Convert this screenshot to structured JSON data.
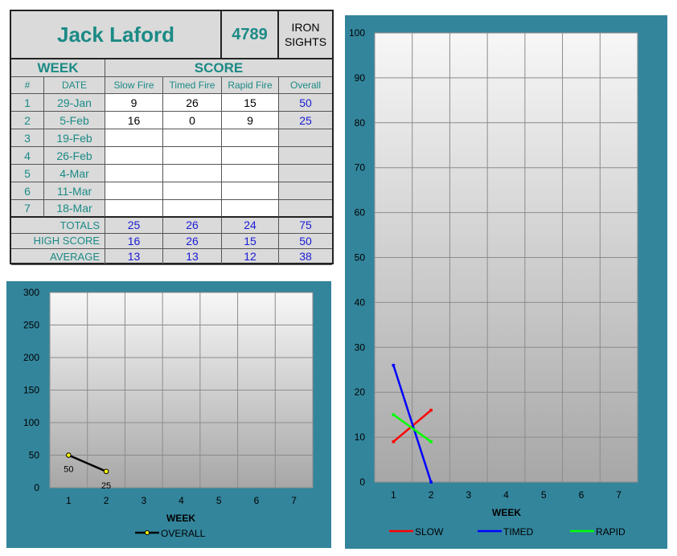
{
  "scorecard": {
    "shooter_name": "Jack Laford",
    "shooter_id": "4789",
    "sight_type": "IRON\nSIGHTS",
    "group_headers": {
      "week": "WEEK",
      "score": "SCORE"
    },
    "columns": [
      "#",
      "DATE",
      "Slow Fire",
      "Timed Fire",
      "Rapid Fire",
      "Overall"
    ],
    "rows": [
      {
        "num": "1",
        "date": "29-Jan",
        "slow": "9",
        "timed": "26",
        "rapid": "15",
        "overall": "50"
      },
      {
        "num": "2",
        "date": "5-Feb",
        "slow": "16",
        "timed": "0",
        "rapid": "9",
        "overall": "25"
      },
      {
        "num": "3",
        "date": "19-Feb",
        "slow": "",
        "timed": "",
        "rapid": "",
        "overall": ""
      },
      {
        "num": "4",
        "date": "26-Feb",
        "slow": "",
        "timed": "",
        "rapid": "",
        "overall": ""
      },
      {
        "num": "5",
        "date": "4-Mar",
        "slow": "",
        "timed": "",
        "rapid": "",
        "overall": ""
      },
      {
        "num": "6",
        "date": "11-Mar",
        "slow": "",
        "timed": "",
        "rapid": "",
        "overall": ""
      },
      {
        "num": "7",
        "date": "18-Mar",
        "slow": "",
        "timed": "",
        "rapid": "",
        "overall": ""
      }
    ],
    "summary": [
      {
        "label": "TOTALS",
        "slow": "25",
        "timed": "26",
        "rapid": "24",
        "overall": "75"
      },
      {
        "label": "HIGH SCORE",
        "slow": "16",
        "timed": "26",
        "rapid": "15",
        "overall": "50"
      },
      {
        "label": "AVERAGE",
        "slow": "13",
        "timed": "13",
        "rapid": "12",
        "overall": "38"
      }
    ]
  },
  "colors": {
    "chart_frame": "#33859c",
    "overall": "#000000",
    "overall_marker": "#ffff00",
    "slow": "#ff0000",
    "timed": "#0000ff",
    "rapid": "#00ff00"
  },
  "chart_data": [
    {
      "type": "line",
      "x": [
        1,
        2,
        3,
        4,
        5,
        6,
        7
      ],
      "xlim": [
        0.5,
        7.5
      ],
      "ylim": [
        0,
        300
      ],
      "yticks": [
        0,
        50,
        100,
        150,
        200,
        250,
        300
      ],
      "xlabel": "WEEK",
      "legend": "bottom",
      "grid": true,
      "data_labels": true,
      "series": [
        {
          "name": "OVERALL",
          "x": [
            1,
            2
          ],
          "values": [
            50,
            25
          ]
        }
      ]
    },
    {
      "type": "line",
      "x": [
        1,
        2,
        3,
        4,
        5,
        6,
        7
      ],
      "xlim": [
        0.5,
        7.5
      ],
      "ylim": [
        0,
        100
      ],
      "yticks": [
        0,
        10,
        20,
        30,
        40,
        50,
        60,
        70,
        80,
        90,
        100
      ],
      "xlabel": "WEEK",
      "legend": "bottom",
      "grid": true,
      "series": [
        {
          "name": "SLOW",
          "x": [
            1,
            2
          ],
          "values": [
            9,
            16
          ]
        },
        {
          "name": "TIMED",
          "x": [
            1,
            2
          ],
          "values": [
            26,
            0
          ]
        },
        {
          "name": "RAPID",
          "x": [
            1,
            2
          ],
          "values": [
            15,
            9
          ]
        }
      ]
    }
  ]
}
